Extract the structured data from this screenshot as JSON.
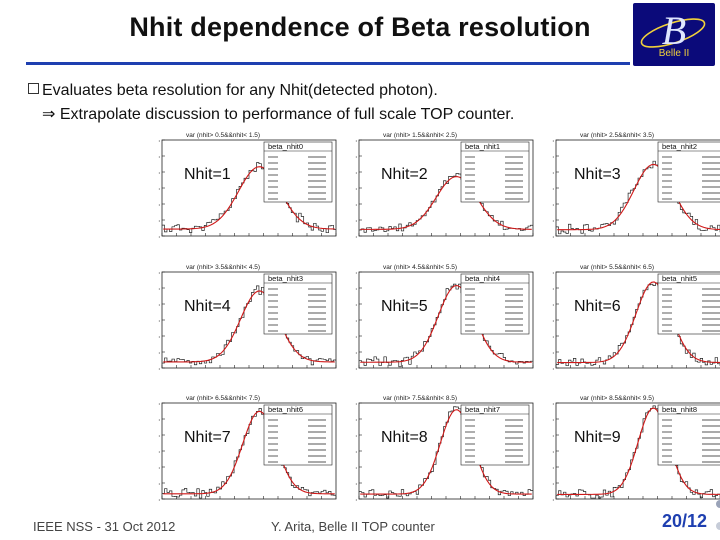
{
  "slide": {
    "title": "Nhit dependence of Beta resolution",
    "bullet_text": "Evaluates beta resolution for any Nhit(detected photon).",
    "sub_text": "⇒ Extrapolate discussion to performance of full scale TOP counter.",
    "logo": {
      "letter": "B",
      "subtitle": "Belle II"
    },
    "footer": {
      "left": "IEEE NSS - 31 Oct 2012",
      "center": "Y. Arita, Belle II TOP counter",
      "page": "20/12"
    }
  },
  "colors": {
    "title_rule": "#1e3fb0",
    "logo_bg": "#0b0a7a",
    "logo_accent": "#f2d23a",
    "fit": "#d01818",
    "page_number": "#1e3fb0"
  },
  "chart_data": [
    {
      "type": "histogram",
      "label": "Nhit=1",
      "histogram_name": "beta_nhit0",
      "header": "var (nhit>   0.5&&nhit<   1.5)",
      "peak_fraction": 0.65
    },
    {
      "type": "histogram",
      "label": "Nhit=2",
      "histogram_name": "beta_nhit1",
      "header": "var (nhit>   1.5&&nhit<   2.5)",
      "peak_fraction": 0.55
    },
    {
      "type": "histogram",
      "label": "Nhit=3",
      "histogram_name": "beta_nhit2",
      "header": "var (nhit>   2.5&&nhit<   3.5)",
      "peak_fraction": 0.68
    },
    {
      "type": "histogram",
      "label": "Nhit=4",
      "histogram_name": "beta_nhit3",
      "header": "var (nhit>   3.5&&nhit<   4.5)",
      "peak_fraction": 0.74
    },
    {
      "type": "histogram",
      "label": "Nhit=5",
      "histogram_name": "beta_nhit4",
      "header": "var (nhit>   4.5&&nhit<   5.5)",
      "peak_fraction": 0.8
    },
    {
      "type": "histogram",
      "label": "Nhit=6",
      "histogram_name": "beta_nhit5",
      "header": "var (nhit>   5.5&&nhit<   6.5)",
      "peak_fraction": 0.84
    },
    {
      "type": "histogram",
      "label": "Nhit=7",
      "histogram_name": "beta_nhit6",
      "header": "var (nhit>   6.5&&nhit<   7.5)",
      "peak_fraction": 0.86
    },
    {
      "type": "histogram",
      "label": "Nhit=8",
      "histogram_name": "beta_nhit7",
      "header": "var (nhit>   7.5&&nhit<   8.5)",
      "peak_fraction": 0.88
    },
    {
      "type": "histogram",
      "label": "Nhit=9",
      "histogram_name": "beta_nhit8",
      "header": "var (nhit>   8.5&&nhit<   9.5)",
      "peak_fraction": 0.9
    }
  ]
}
